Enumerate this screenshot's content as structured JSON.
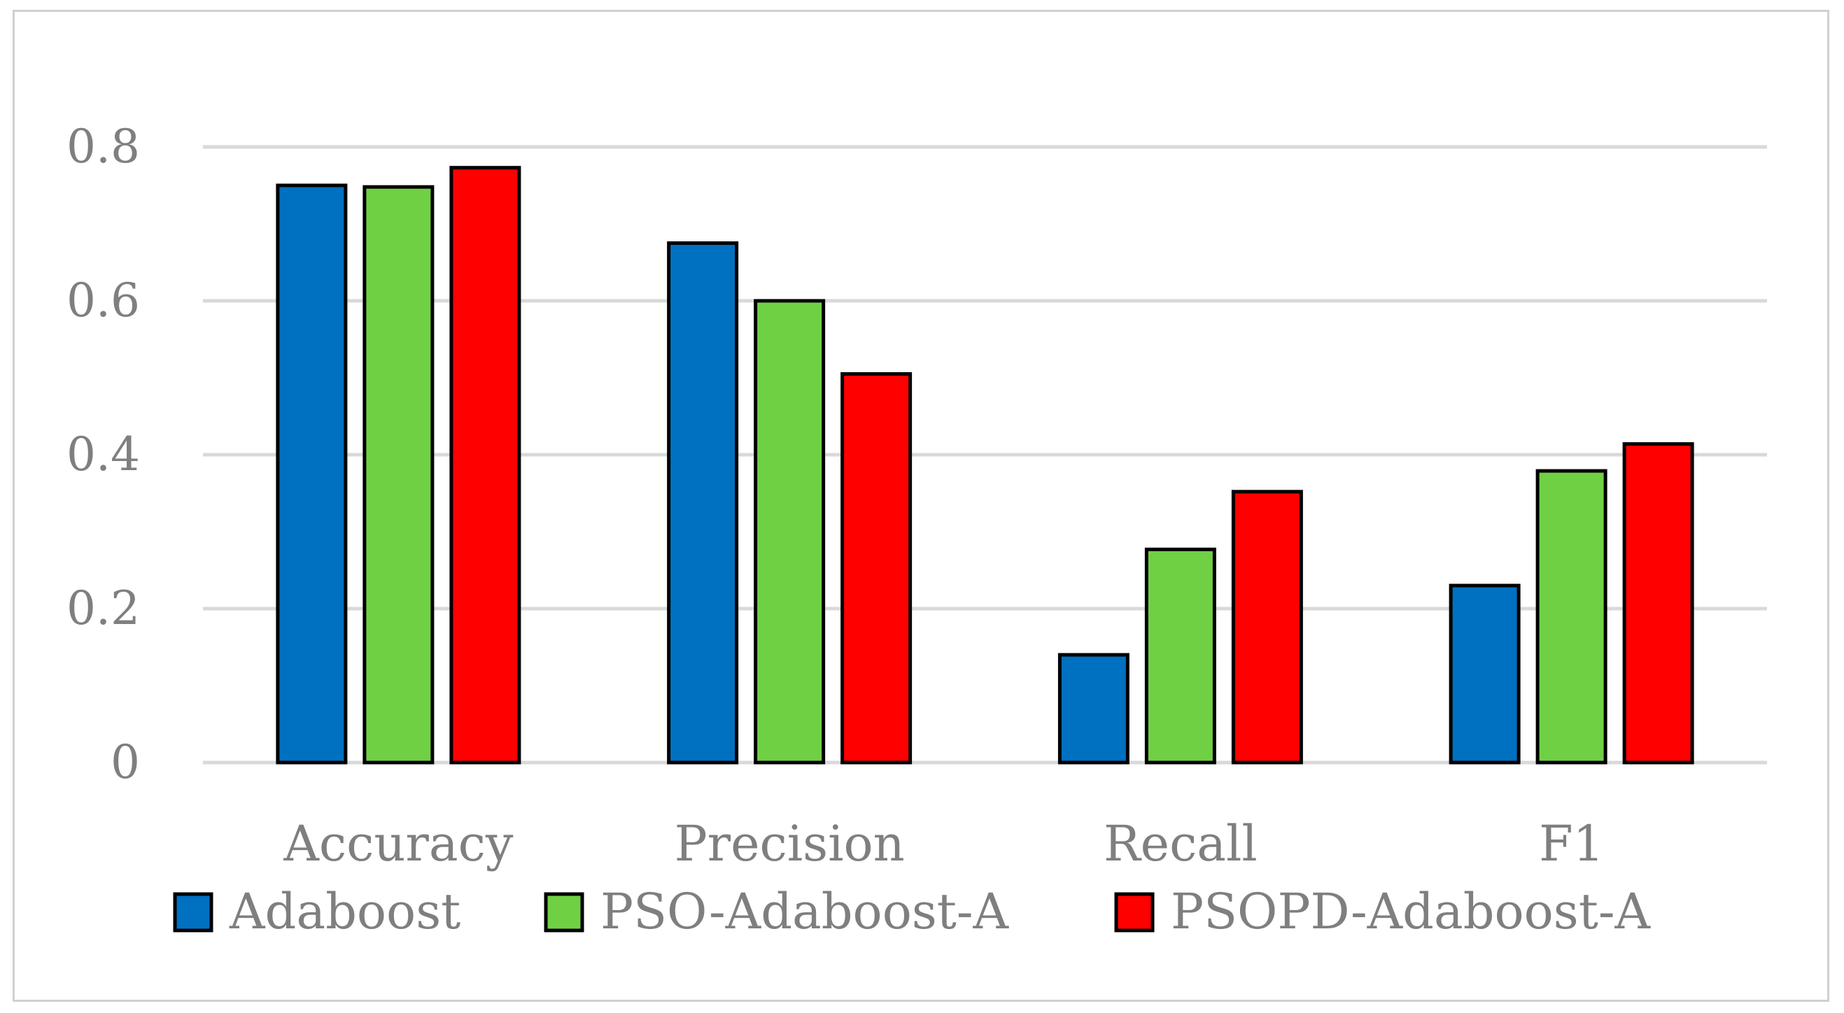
{
  "chart_data": {
    "type": "bar",
    "title": "",
    "xlabel": "",
    "ylabel": "",
    "categories": [
      "Accuracy",
      "Precision",
      "Recall",
      "F1"
    ],
    "series": [
      {
        "name": "Adaboost",
        "color": "#0070c0",
        "values": [
          0.75,
          0.675,
          0.14,
          0.23
        ]
      },
      {
        "name": "PSO-Adaboost-A",
        "color": "#70d044",
        "values": [
          0.748,
          0.6,
          0.277,
          0.379
        ]
      },
      {
        "name": "PSOPD-Adaboost-A",
        "color": "#ff0000",
        "values": [
          0.773,
          0.505,
          0.352,
          0.414
        ]
      }
    ],
    "ylim": [
      0,
      0.8
    ],
    "yticks": [
      0,
      0.2,
      0.4,
      0.6,
      0.8
    ],
    "ytick_labels": [
      "0",
      "0.2",
      "0.4",
      "0.6",
      "0.8"
    ],
    "grid": true,
    "legend_position": "bottom",
    "bar_outline_color": "#000000",
    "gridline_color": "#d9d9d9"
  }
}
